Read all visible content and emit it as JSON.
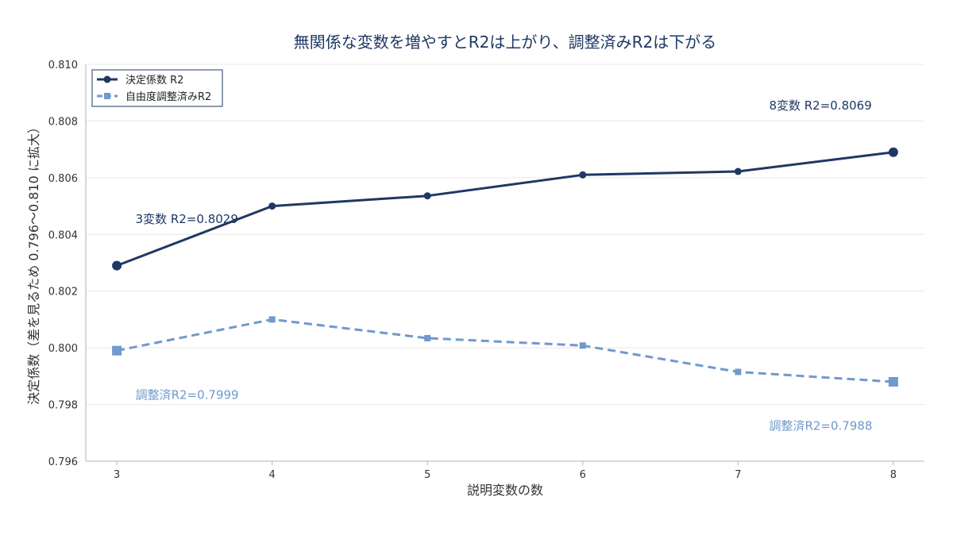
{
  "chart_data": {
    "type": "line",
    "title": "無関係な変数を増やすとR2は上がり、調整済みR2は下がる",
    "xlabel": "説明変数の数",
    "ylabel": "決定係数（差を見るため 0.796〜0.810 に拡大）",
    "x": [
      3,
      4,
      5,
      6,
      7,
      8
    ],
    "xlim": [
      2.8,
      8.2
    ],
    "ylim": [
      0.796,
      0.81
    ],
    "yticks": [
      "0.796",
      "0.798",
      "0.800",
      "0.802",
      "0.804",
      "0.806",
      "0.808",
      "0.810"
    ],
    "xticks": [
      "3",
      "4",
      "5",
      "6",
      "7",
      "8"
    ],
    "grid": "horizontal",
    "legend_position": "top-left",
    "series": [
      {
        "name": "決定係数 R2",
        "values": [
          0.8029,
          0.805,
          0.80536,
          0.8061,
          0.80622,
          0.8069
        ],
        "color": "#1f3864",
        "style": "solid",
        "marker": "circle"
      },
      {
        "name": "自由度調整済みR2",
        "values": [
          0.7999,
          0.801,
          0.80034,
          0.80008,
          0.79915,
          0.7988
        ],
        "color": "#7099cc",
        "style": "dashed",
        "marker": "square"
      }
    ],
    "annotations": [
      {
        "text": "3変数 R2=0.8029",
        "x": 3.12,
        "y": 0.8044,
        "color": "#1f3864"
      },
      {
        "text": "8変数 R2=0.8069",
        "x": 7.2,
        "y": 0.8084,
        "color": "#1f3864"
      },
      {
        "text": "調整済R2=0.7999",
        "x": 3.12,
        "y": 0.7982,
        "color": "#7099cc"
      },
      {
        "text": "調整済R2=0.7988",
        "x": 7.2,
        "y": 0.7971,
        "color": "#7099cc"
      }
    ]
  }
}
